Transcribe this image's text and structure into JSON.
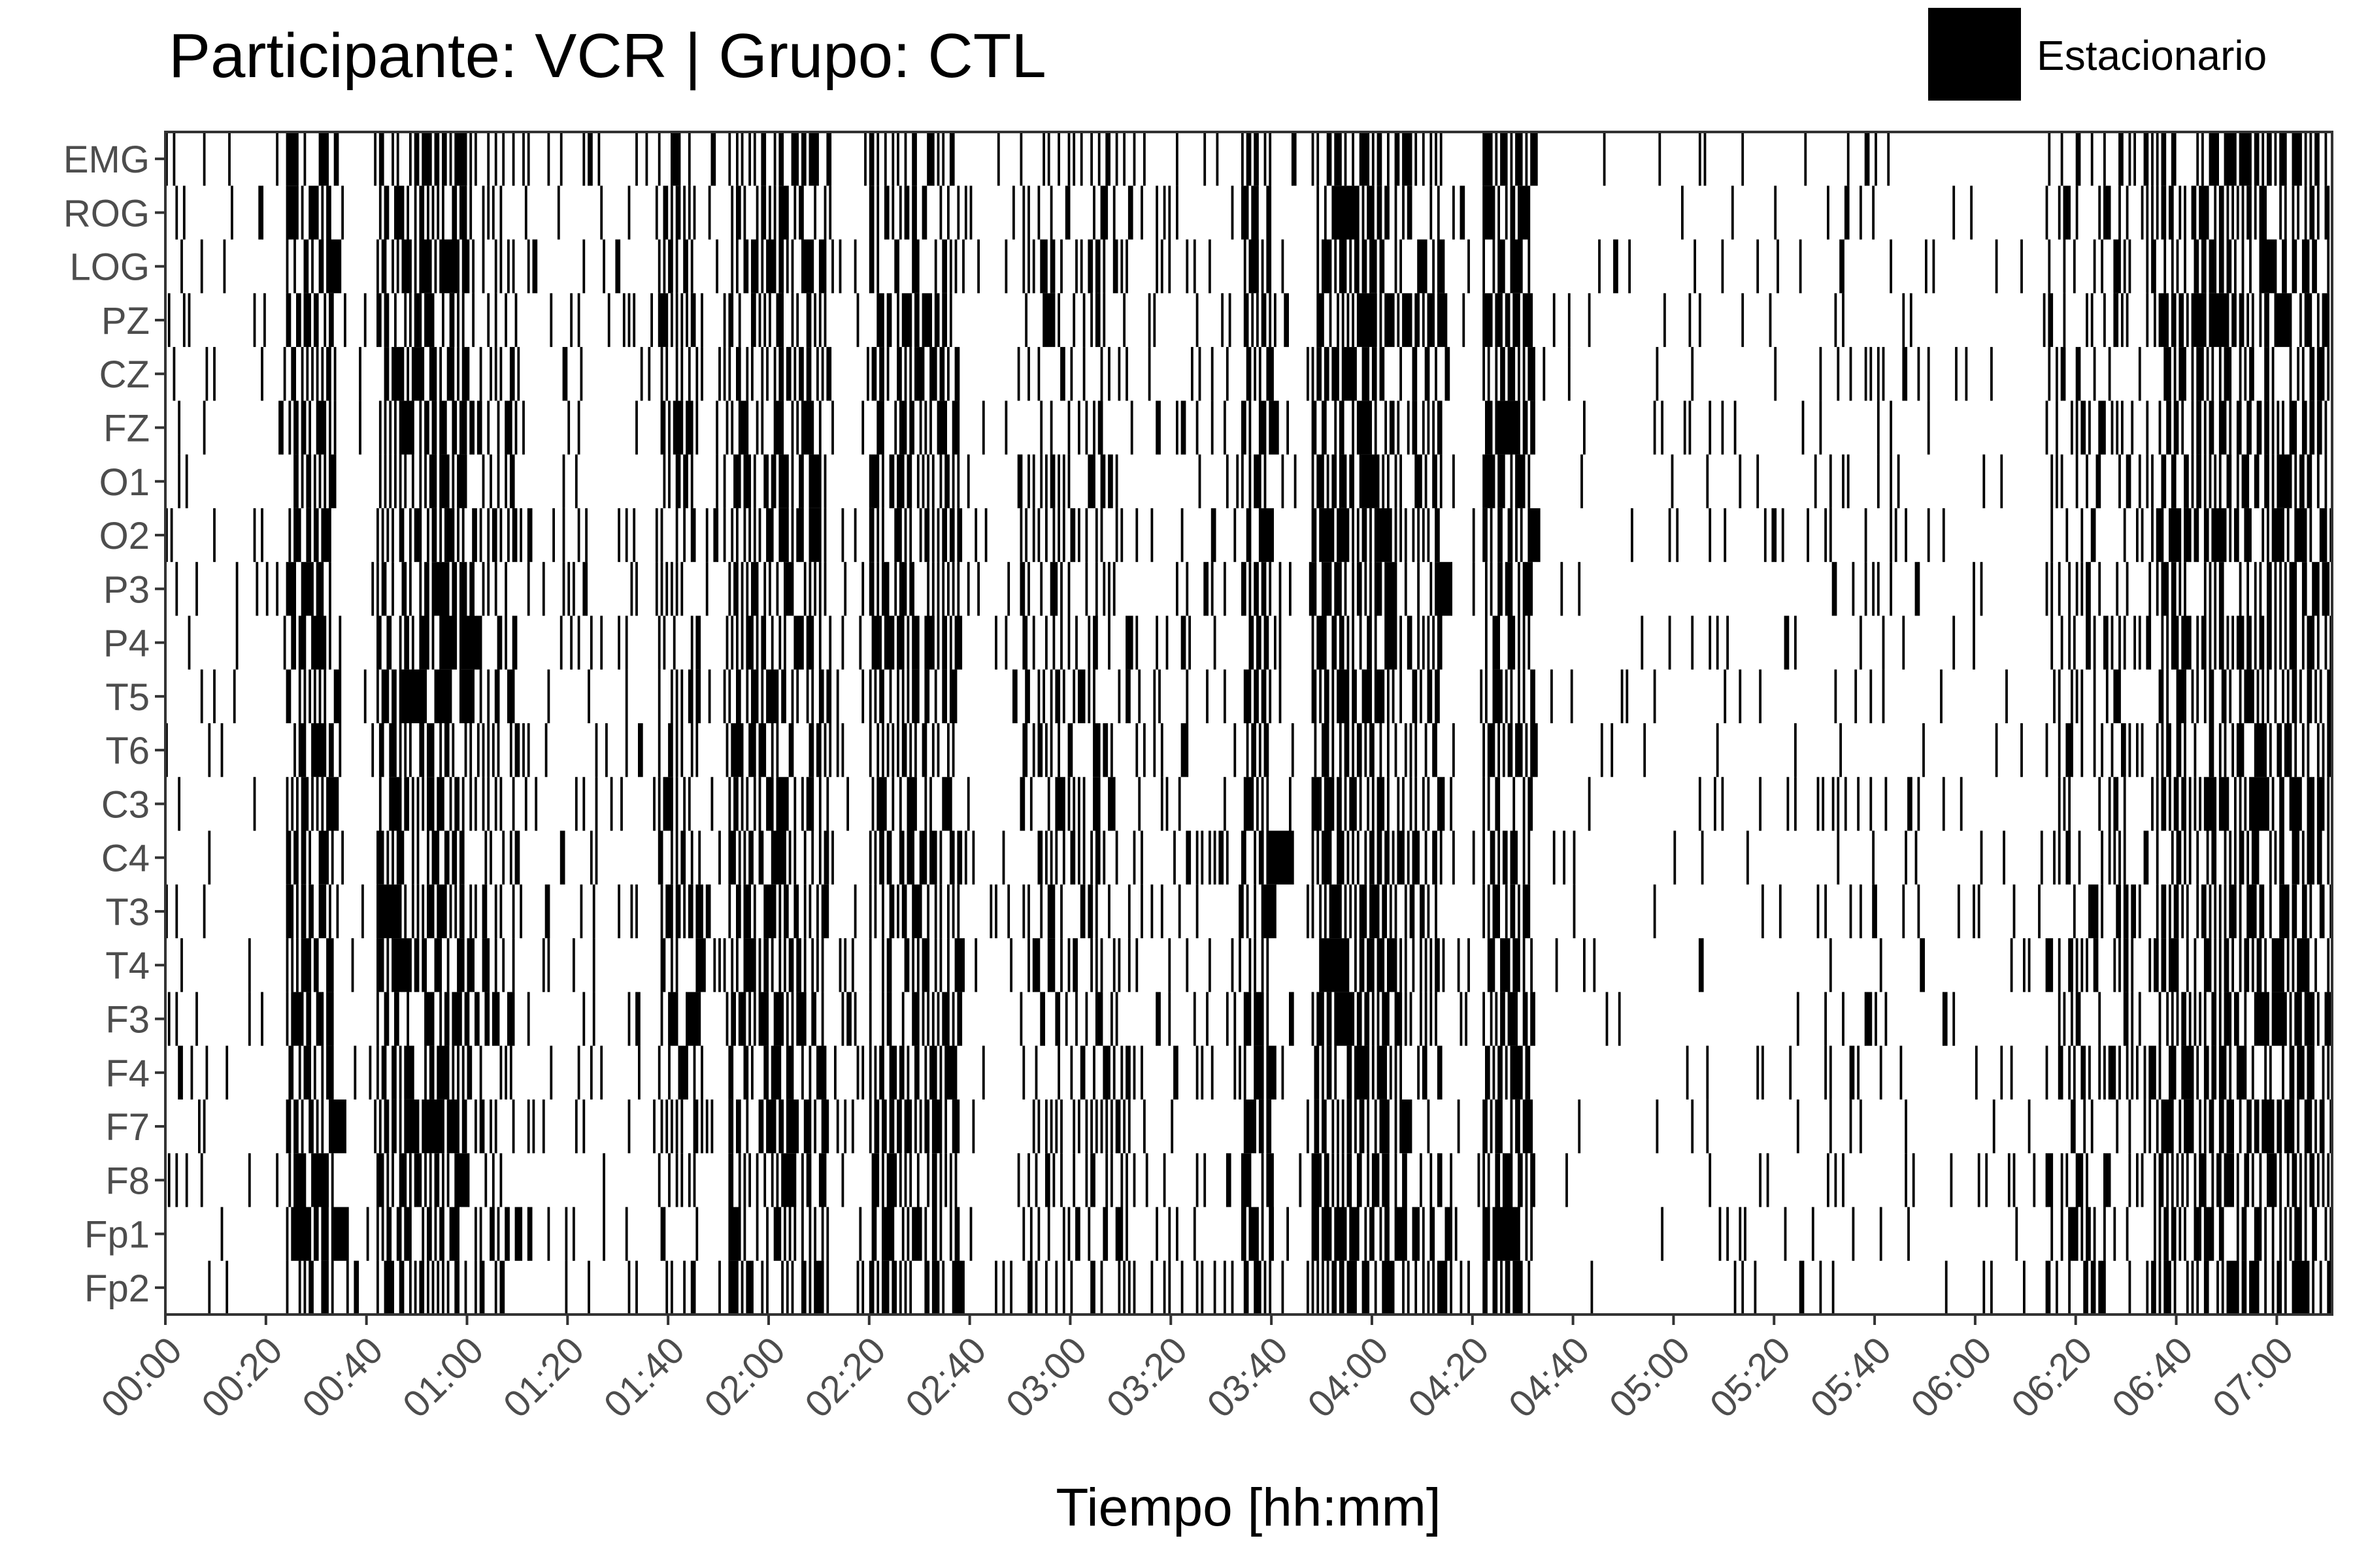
{
  "title": "Participante: VCR | Grupo: CTL",
  "legend": {
    "label": "Estacionario",
    "color": "#000000",
    "placement": "top-right"
  },
  "chart_data": {
    "type": "heatmap",
    "title": "Participante: VCR | Grupo: CTL",
    "xlabel": "Tiempo [hh:mm]",
    "ylabel": "",
    "x_unit": "minutes",
    "xlim": [
      0,
      431
    ],
    "x_ticks": [
      {
        "minute": 0,
        "label": "00:00"
      },
      {
        "minute": 20,
        "label": "00:20"
      },
      {
        "minute": 40,
        "label": "00:40"
      },
      {
        "minute": 60,
        "label": "01:00"
      },
      {
        "minute": 80,
        "label": "01:20"
      },
      {
        "minute": 100,
        "label": "01:40"
      },
      {
        "minute": 120,
        "label": "02:00"
      },
      {
        "minute": 140,
        "label": "02:20"
      },
      {
        "minute": 160,
        "label": "02:40"
      },
      {
        "minute": 180,
        "label": "03:00"
      },
      {
        "minute": 200,
        "label": "03:20"
      },
      {
        "minute": 220,
        "label": "03:40"
      },
      {
        "minute": 240,
        "label": "04:00"
      },
      {
        "minute": 260,
        "label": "04:20"
      },
      {
        "minute": 280,
        "label": "04:40"
      },
      {
        "minute": 300,
        "label": "05:00"
      },
      {
        "minute": 320,
        "label": "05:20"
      },
      {
        "minute": 340,
        "label": "05:40"
      },
      {
        "minute": 360,
        "label": "06:00"
      },
      {
        "minute": 380,
        "label": "06:20"
      },
      {
        "minute": 400,
        "label": "06:40"
      },
      {
        "minute": 420,
        "label": "07:00"
      }
    ],
    "channels": [
      "EMG",
      "ROG",
      "LOG",
      "PZ",
      "CZ",
      "FZ",
      "O1",
      "O2",
      "P3",
      "P4",
      "T5",
      "T6",
      "C3",
      "C4",
      "T3",
      "T4",
      "F3",
      "F4",
      "F7",
      "F8",
      "Fp1",
      "Fp2"
    ],
    "category_label": "Estacionario",
    "category_color": "#000000",
    "grid": false,
    "note_values": "stationary-segment density per channel and time window (0-1), estimated",
    "density_profile": [
      {
        "start": 0,
        "end": 8,
        "value": 0.12
      },
      {
        "start": 8,
        "end": 24,
        "value": 0.06
      },
      {
        "start": 24,
        "end": 34,
        "value": 0.7
      },
      {
        "start": 34,
        "end": 42,
        "value": 0.06
      },
      {
        "start": 42,
        "end": 60,
        "value": 0.72
      },
      {
        "start": 60,
        "end": 70,
        "value": 0.4
      },
      {
        "start": 70,
        "end": 98,
        "value": 0.1
      },
      {
        "start": 98,
        "end": 106,
        "value": 0.5
      },
      {
        "start": 106,
        "end": 112,
        "value": 0.12
      },
      {
        "start": 112,
        "end": 132,
        "value": 0.62
      },
      {
        "start": 132,
        "end": 140,
        "value": 0.15
      },
      {
        "start": 140,
        "end": 158,
        "value": 0.6
      },
      {
        "start": 158,
        "end": 170,
        "value": 0.1
      },
      {
        "start": 170,
        "end": 190,
        "value": 0.35
      },
      {
        "start": 190,
        "end": 214,
        "value": 0.18
      },
      {
        "start": 214,
        "end": 220,
        "value": 0.72
      },
      {
        "start": 220,
        "end": 228,
        "value": 0.1
      },
      {
        "start": 228,
        "end": 244,
        "value": 0.78
      },
      {
        "start": 244,
        "end": 254,
        "value": 0.5
      },
      {
        "start": 254,
        "end": 262,
        "value": 0.1
      },
      {
        "start": 262,
        "end": 272,
        "value": 0.75
      },
      {
        "start": 272,
        "end": 300,
        "value": 0.04
      },
      {
        "start": 300,
        "end": 330,
        "value": 0.06
      },
      {
        "start": 330,
        "end": 350,
        "value": 0.12
      },
      {
        "start": 350,
        "end": 374,
        "value": 0.05
      },
      {
        "start": 374,
        "end": 396,
        "value": 0.3
      },
      {
        "start": 396,
        "end": 431,
        "value": 0.65
      }
    ]
  }
}
